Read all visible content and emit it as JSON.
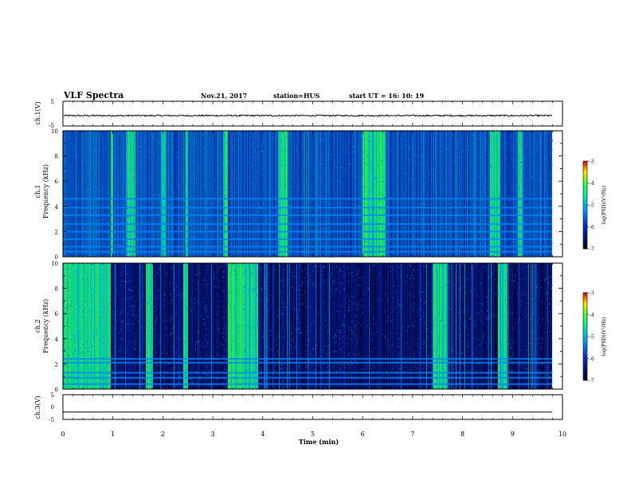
{
  "header": {
    "title": "VLF Spectra",
    "date": "Nov.21, 2017",
    "station": "station=HUS",
    "start_ut": "start  UT =   16: 10: 19"
  },
  "chart_data": [
    {
      "type": "line",
      "name": "ch1-waveform",
      "ylabel": "ch.1(V)",
      "ylim": [
        -5,
        5
      ],
      "y_ticks": [
        "5",
        "-5"
      ],
      "x": [
        0,
        10
      ],
      "values_approx": "noisy trace near -0.8 V, amplitude about ±0.3 V"
    },
    {
      "type": "heatmap",
      "name": "ch1-spectrogram",
      "ylabel_top": "ch.1",
      "ylabel": "Frequency  (kHz)",
      "ylim": [
        0,
        10
      ],
      "y_ticks": [
        "0",
        "2",
        "4",
        "6",
        "8",
        "10"
      ],
      "xlim": [
        0,
        10
      ],
      "bright_bursts_min": [
        [
          0.95,
          1.0
        ],
        [
          1.25,
          1.45
        ],
        [
          1.95,
          2.05
        ],
        [
          2.45,
          2.5
        ],
        [
          3.2,
          3.3
        ],
        [
          4.3,
          4.5
        ],
        [
          6.0,
          6.45
        ],
        [
          8.55,
          8.75
        ],
        [
          9.1,
          9.2
        ]
      ],
      "horizontal_bands_khz": [
        0.4,
        0.8,
        1.4,
        2.0,
        2.6,
        3.3,
        3.9,
        4.6
      ],
      "colorbar": {
        "label": "log(PSD)(V²/Hz)",
        "min": -7,
        "max": -3,
        "ticks": [
          "-3",
          "-4",
          "-5",
          "-6",
          "-7"
        ]
      }
    },
    {
      "type": "heatmap",
      "name": "ch2-spectrogram",
      "ylabel_top": "ch.2",
      "ylabel": "Frequency  (kHz)",
      "ylim": [
        0,
        10
      ],
      "y_ticks": [
        "0",
        "2",
        "4",
        "6",
        "8",
        "10"
      ],
      "xlim": [
        0,
        10
      ],
      "bright_bursts_min": [
        [
          0.0,
          0.95
        ],
        [
          1.65,
          1.8
        ],
        [
          2.4,
          2.5
        ],
        [
          3.3,
          3.9
        ],
        [
          7.4,
          7.7
        ],
        [
          8.7,
          8.9
        ]
      ],
      "horizontal_bands_khz": [
        0.4,
        0.9,
        1.3,
        2.1,
        2.4
      ],
      "colorbar": {
        "label": "log(PSD)(V²/Hz)",
        "min": -7,
        "max": -3,
        "ticks": [
          "-3",
          "-4",
          "-5",
          "-6",
          "-7"
        ]
      }
    },
    {
      "type": "line",
      "name": "ch3-waveform",
      "ylabel": "ch.3(V)",
      "ylim": [
        -5,
        5
      ],
      "y_ticks": [
        "5",
        "0",
        "-5"
      ],
      "xlabel": "Time  (min)",
      "x_ticks": [
        "0",
        "1",
        "2",
        "3",
        "4",
        "5",
        "6",
        "7",
        "8",
        "9",
        "10"
      ],
      "values_approx": "flat line at about -2 V"
    }
  ]
}
